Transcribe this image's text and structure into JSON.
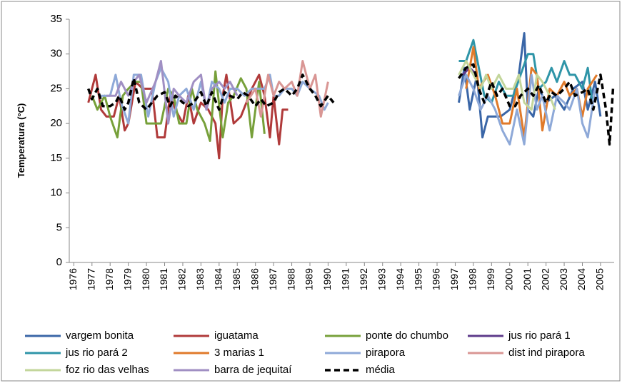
{
  "chart_data": {
    "type": "line",
    "ylabel": "Temperatura (°C)",
    "xlim": [
      1975.75,
      2005.75
    ],
    "xticks": [
      1976,
      1977,
      1978,
      1979,
      1980,
      1981,
      1982,
      1983,
      1984,
      1985,
      1986,
      1987,
      1988,
      1989,
      1990,
      1991,
      1992,
      1993,
      1994,
      1995,
      1996,
      1997,
      1998,
      1999,
      2000,
      2001,
      2002,
      2003,
      2004,
      2005
    ],
    "ylim": [
      0,
      35
    ],
    "yticks": [
      0,
      5,
      10,
      15,
      20,
      25,
      30,
      35
    ],
    "grid": false,
    "legend": "bottom",
    "series": [
      {
        "name": "vargem bonita",
        "color": "#3a66a7",
        "x": [
          1997.2,
          1997.5,
          1997.8,
          1998.2,
          1998.5,
          1998.8,
          1999.2,
          1999.5,
          2000,
          2000.5,
          2000.8,
          2001,
          2001.3,
          2001.6,
          2002,
          2002.5,
          2003,
          2003.5,
          2004,
          2004.3,
          2004.7,
          2005
        ],
        "values": [
          23,
          28,
          22,
          27,
          18,
          21,
          21,
          21,
          22,
          27,
          33,
          22,
          21,
          25,
          23,
          24,
          22,
          25,
          26,
          22,
          26,
          21
        ]
      },
      {
        "name": "iguatama",
        "color": "#b03a3a",
        "x": [
          1976.8,
          1977.2,
          1977.5,
          1977.8,
          1978.2,
          1978.5,
          1978.8,
          1979,
          1979.4,
          1979.8,
          1980.3,
          1980.6,
          1981,
          1981.3,
          1981.6,
          1982,
          1982.3,
          1982.6,
          1983,
          1983.4,
          1983.8,
          1984,
          1984.2,
          1984.4,
          1984.8,
          1985.2,
          1985.5,
          1985.8,
          1986.2,
          1986.5,
          1986.8,
          1987,
          1987.3,
          1987.5,
          1987.8
        ],
        "values": [
          23,
          27,
          22,
          21,
          21,
          24,
          19,
          20,
          26,
          25,
          25,
          18,
          18,
          24,
          22,
          20,
          24,
          20,
          23,
          22,
          20,
          15,
          24,
          27,
          20,
          21,
          23,
          25,
          27,
          24,
          18,
          24,
          17,
          22,
          22
        ]
      },
      {
        "name": "ponte do chumbo",
        "color": "#77a03a",
        "x": [
          1977,
          1977.3,
          1977.7,
          1978,
          1978.4,
          1978.7,
          1979,
          1979.4,
          1979.7,
          1980,
          1980.5,
          1980.8,
          1981.2,
          1981.5,
          1981.8,
          1982.2,
          1982.5,
          1982.8,
          1983.2,
          1983.5,
          1983.8,
          1984.2,
          1984.5,
          1984.8,
          1985.2,
          1985.5,
          1985.8,
          1986.2,
          1986.5
        ],
        "values": [
          24,
          22,
          24,
          21,
          18,
          24,
          25,
          26,
          26,
          20,
          20,
          20,
          25,
          24,
          20,
          20,
          25,
          22,
          20,
          17.5,
          27.5,
          18,
          23,
          24,
          26.5,
          25,
          18,
          26,
          18.5
        ]
      },
      {
        "name": "jus rio pará 1",
        "color": "#5d3a8a",
        "x": [
          1997.4,
          1997.8,
          1998.2
        ],
        "values": [
          27,
          28,
          27
        ]
      },
      {
        "name": "jus rio pará 2",
        "color": "#2f95a8",
        "x": [
          1997.2,
          1997.6,
          1998,
          1998.3,
          1998.6,
          1999,
          1999.4,
          1999.8,
          2000.2,
          2000.6,
          2001,
          2001.3,
          2001.6,
          2002,
          2002.3,
          2002.6,
          2003,
          2003.3,
          2003.6,
          2004,
          2004.3,
          2004.6
        ],
        "values": [
          29,
          29,
          32,
          28,
          24,
          23,
          26,
          24,
          24,
          27,
          30,
          30,
          25,
          26,
          28,
          26,
          29,
          27,
          27,
          25,
          28,
          22
        ]
      },
      {
        "name": "3 marias 1",
        "color": "#e07a2a",
        "x": [
          1997.6,
          1998,
          1998.3,
          1998.8,
          1999.2,
          1999.6,
          2000,
          2000.4,
          2000.8,
          2001.2,
          2001.5,
          2001.8,
          2002.2,
          2002.6,
          2003,
          2003.3,
          2003.7,
          2004,
          2004.3,
          2004.8
        ],
        "values": [
          25,
          31,
          25,
          27,
          24,
          20,
          20,
          25,
          18,
          28,
          27,
          19,
          25,
          24,
          26,
          24,
          25,
          21,
          25,
          27
        ]
      },
      {
        "name": "pirapora",
        "color": "#8ea9d8",
        "x": [
          1977.5,
          1978,
          1978.3,
          1978.6,
          1979,
          1979.3,
          1979.7,
          1980.1,
          1980.5,
          1980.8,
          1981.2,
          1981.5,
          1981.8,
          1982.2,
          1982.6,
          1983,
          1983.3,
          1983.6,
          1984,
          1984.3,
          1984.6,
          1985,
          1985.4,
          1985.8,
          1986.2,
          1986.5,
          1986.8,
          1987,
          1987.3,
          1987.6,
          1988,
          1988.3,
          1988.6,
          1989,
          1989.5,
          1989.8,
          1990,
          1993,
          1997.2,
          1997.6,
          1998,
          1998.4,
          1998.8,
          1999.2,
          1999.6,
          2000,
          2000.4,
          2000.8,
          2001.2,
          2001.5,
          2001.8,
          2002.2,
          2002.6,
          2003,
          2003.3,
          2003.7,
          2004,
          2004.3,
          2004.7
        ],
        "values": [
          24,
          24,
          27,
          23,
          20,
          27,
          27,
          21,
          26,
          28,
          26,
          21,
          24,
          25,
          22,
          26,
          22,
          26,
          25,
          23,
          25,
          25,
          24,
          25,
          25,
          25,
          27,
          24,
          24,
          25,
          25,
          24,
          26,
          25,
          24,
          22,
          23,
          null,
          24,
          27,
          25,
          22,
          24,
          22,
          19,
          17,
          22,
          17,
          27,
          22,
          24,
          19,
          24,
          23,
          22,
          25,
          20,
          18,
          25
        ]
      },
      {
        "name": "dist ind pirapora",
        "color": "#d99694",
        "x": [
          1985.5,
          1986,
          1986.3,
          1986.7,
          1987,
          1987.3,
          1987.6,
          1988,
          1988.3,
          1988.6,
          1989,
          1989.3,
          1989.6,
          1990
        ],
        "values": [
          23,
          25,
          21,
          27,
          24,
          26,
          25,
          26,
          24,
          29,
          25,
          27,
          21,
          26
        ]
      },
      {
        "name": "foz rio das velhas",
        "color": "#c3d69b",
        "x": [
          1997.2,
          1997.6,
          1998,
          1998.4,
          1998.7,
          1999,
          1999.4,
          1999.8,
          2000.2,
          2000.5,
          2000.8,
          2001.2,
          2001.5,
          2001.8,
          2002.2,
          2002.5
        ],
        "values": [
          27,
          29,
          27,
          25,
          27,
          25,
          27,
          25,
          25,
          27,
          23,
          22,
          27,
          26,
          24,
          22
        ]
      },
      {
        "name": "barra de jequitaí",
        "color": "#a08fc3",
        "x": [
          1977.8,
          1978.3,
          1978.6,
          1979,
          1979.3,
          1979.6,
          1980,
          1980.5,
          1980.8,
          1981.2,
          1981.5,
          1981.8,
          1982.2,
          1982.6,
          1983,
          1983.3,
          1983.6,
          1984,
          1984.3,
          1984.6,
          1985
        ],
        "values": [
          24,
          24,
          26,
          24,
          26,
          27,
          23,
          26,
          29,
          20,
          25,
          24,
          23,
          26,
          27,
          22,
          25,
          26,
          25,
          26,
          24
        ]
      },
      {
        "name": "média",
        "color": "#000000",
        "style": "dashed",
        "x": [
          1976.8,
          1977,
          1977.3,
          1977.6,
          1978,
          1978.3,
          1978.5,
          1978.8,
          1979,
          1979.3,
          1979.6,
          1980,
          1980.3,
          1980.6,
          1981,
          1981.3,
          1981.6,
          1982,
          1982.3,
          1982.6,
          1983,
          1983.3,
          1983.6,
          1984,
          1984.3,
          1984.6,
          1985,
          1985.3,
          1985.6,
          1986,
          1986.3,
          1986.6,
          1987,
          1987.3,
          1987.6,
          1988,
          1988.3,
          1988.6,
          1989,
          1989.3,
          1989.6,
          1990,
          1990.3,
          1993,
          1997.2,
          1997.6,
          1998,
          1998.3,
          1998.6,
          1999,
          1999.3,
          1999.6,
          2000,
          2000.3,
          2000.6,
          2001,
          2001.3,
          2001.6,
          2002,
          2002.3,
          2002.6,
          2003,
          2003.3,
          2003.6,
          2004,
          2004.3,
          2004.6,
          2005,
          2005.3,
          2005.5,
          2005.7
        ],
        "values": [
          25,
          23.5,
          25,
          22.5,
          22.5,
          23,
          24,
          22,
          23,
          26.5,
          23,
          22,
          23,
          24,
          24.5,
          22.5,
          24,
          23,
          22.5,
          23,
          24.5,
          22.5,
          24.5,
          22,
          24.5,
          24,
          23.5,
          24.5,
          24,
          22.5,
          23.5,
          22.5,
          23,
          24.5,
          25,
          24,
          25,
          27,
          25,
          24,
          22.5,
          24,
          23,
          null,
          26.5,
          28,
          28.5,
          25,
          23,
          26,
          24,
          25,
          22.5,
          22.5,
          24,
          25,
          24,
          25.5,
          23,
          24.5,
          24,
          25,
          26,
          24,
          24.5,
          25,
          22,
          27,
          22,
          17,
          25.5
        ]
      }
    ]
  }
}
